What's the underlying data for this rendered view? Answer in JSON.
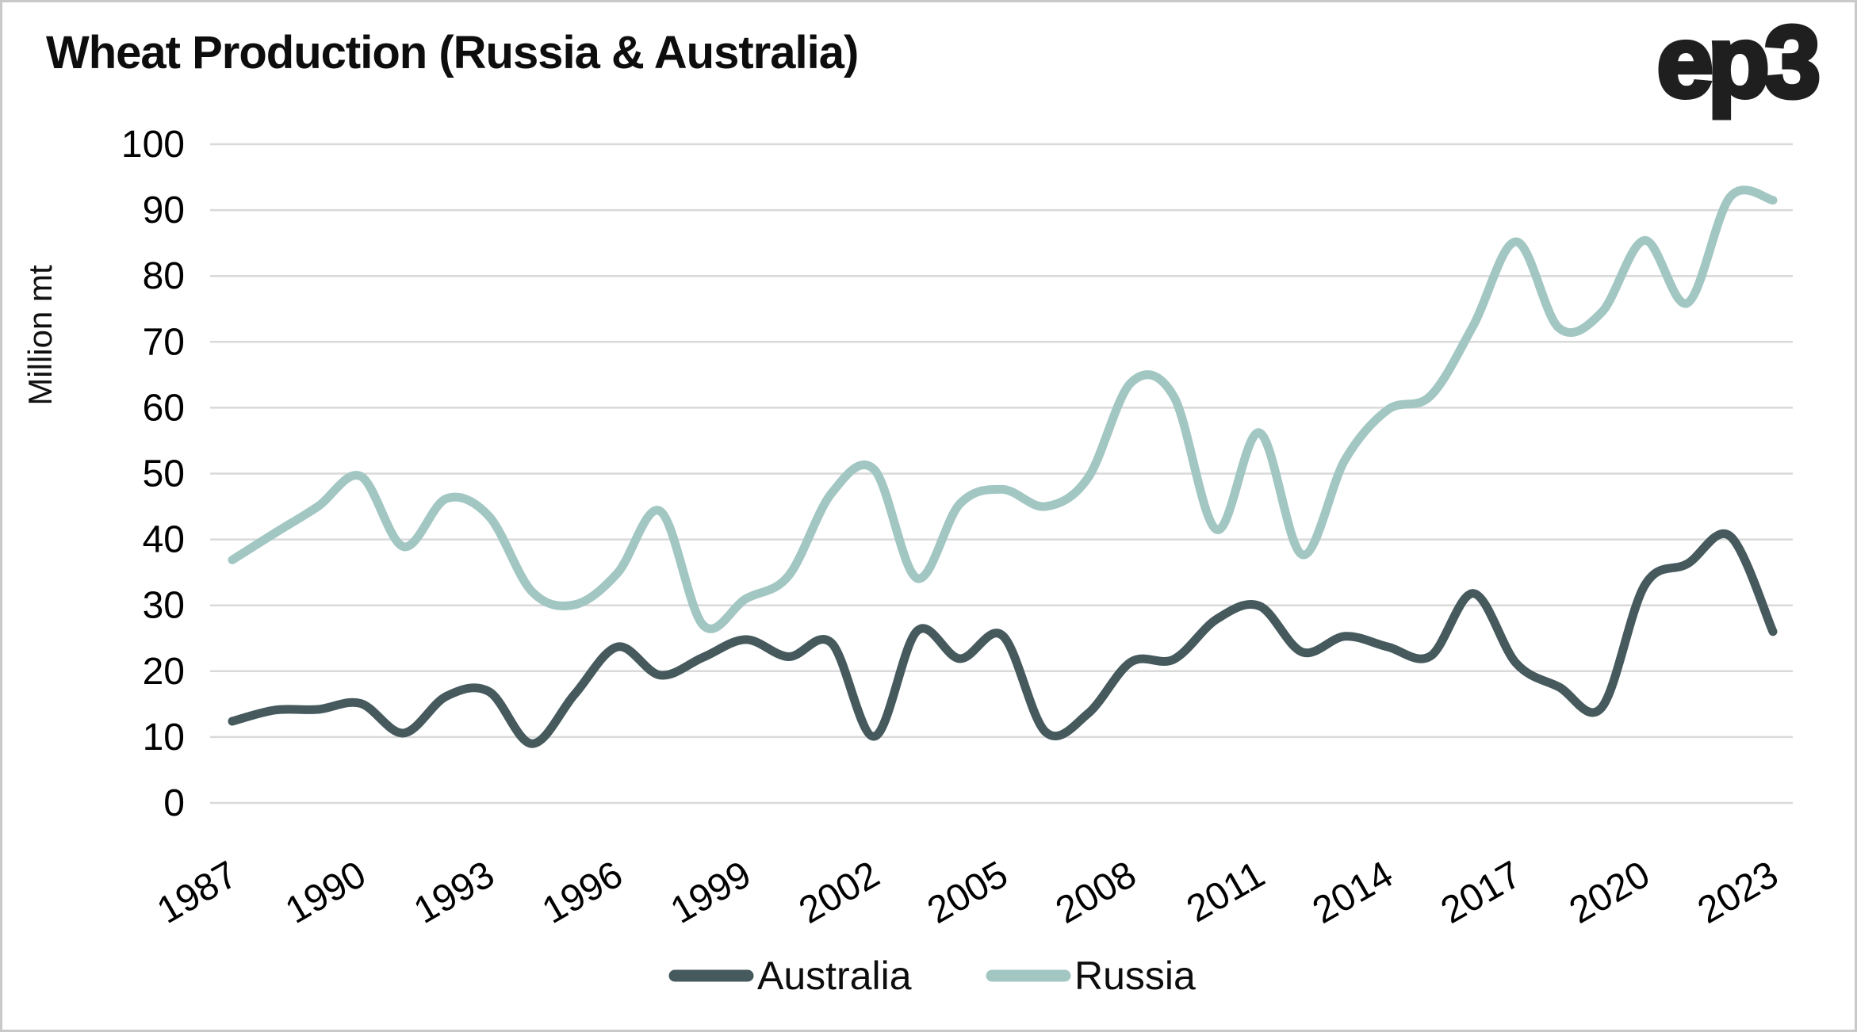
{
  "header": {
    "title": "Wheat Production (Russia & Australia)",
    "logo": "ep3"
  },
  "chart_data": {
    "type": "line",
    "title": "Wheat Production (Russia & Australia)",
    "xlabel": "",
    "ylabel": "Million mt",
    "ylim": [
      0,
      100
    ],
    "yticks": [
      0,
      10,
      20,
      30,
      40,
      50,
      60,
      70,
      80,
      90,
      100
    ],
    "grid": "horizontal",
    "grid_color": "#d9d9d9",
    "legend_position": "bottom",
    "x_years": [
      1987,
      1988,
      1989,
      1990,
      1991,
      1992,
      1993,
      1994,
      1995,
      1996,
      1997,
      1998,
      1999,
      2000,
      2001,
      2002,
      2003,
      2004,
      2005,
      2006,
      2007,
      2008,
      2009,
      2010,
      2011,
      2012,
      2013,
      2014,
      2015,
      2016,
      2017,
      2018,
      2019,
      2020,
      2021,
      2022,
      2023
    ],
    "xtick_labels": [
      "1987",
      "1990",
      "1993",
      "1996",
      "1999",
      "2002",
      "2005",
      "2008",
      "2011",
      "2014",
      "2017",
      "2020",
      "2023"
    ],
    "series": [
      {
        "name": "Australia",
        "color": "#465a5e",
        "values": [
          12.4,
          14.1,
          14.2,
          15.1,
          10.6,
          16.2,
          16.9,
          9.0,
          16.5,
          23.7,
          19.4,
          22.1,
          24.8,
          22.2,
          24.3,
          10.1,
          26.1,
          21.9,
          25.4,
          10.8,
          13.6,
          21.4,
          21.8,
          27.9,
          29.9,
          22.9,
          25.3,
          23.7,
          22.3,
          31.8,
          21.2,
          17.6,
          14.5,
          33.0,
          36.3,
          40.5,
          26.0
        ]
      },
      {
        "name": "Russia",
        "color": "#a2c7c3",
        "values": [
          36.9,
          41.0,
          45.0,
          49.6,
          38.9,
          46.2,
          43.5,
          32.1,
          30.1,
          34.9,
          44.3,
          27.0,
          31.0,
          34.5,
          47.0,
          50.6,
          34.1,
          45.4,
          47.6,
          45.0,
          49.4,
          63.8,
          61.7,
          41.5,
          56.2,
          37.7,
          52.1,
          59.7,
          61.8,
          72.5,
          85.2,
          72.1,
          74.5,
          85.4,
          75.9,
          92.0,
          91.5
        ]
      }
    ]
  },
  "colors": {
    "background": "#ffffff",
    "border": "#c9c9c9",
    "grid": "#d9d9d9",
    "text": "#000000",
    "australia_line": "#465a5e",
    "russia_line": "#a2c7c3"
  }
}
